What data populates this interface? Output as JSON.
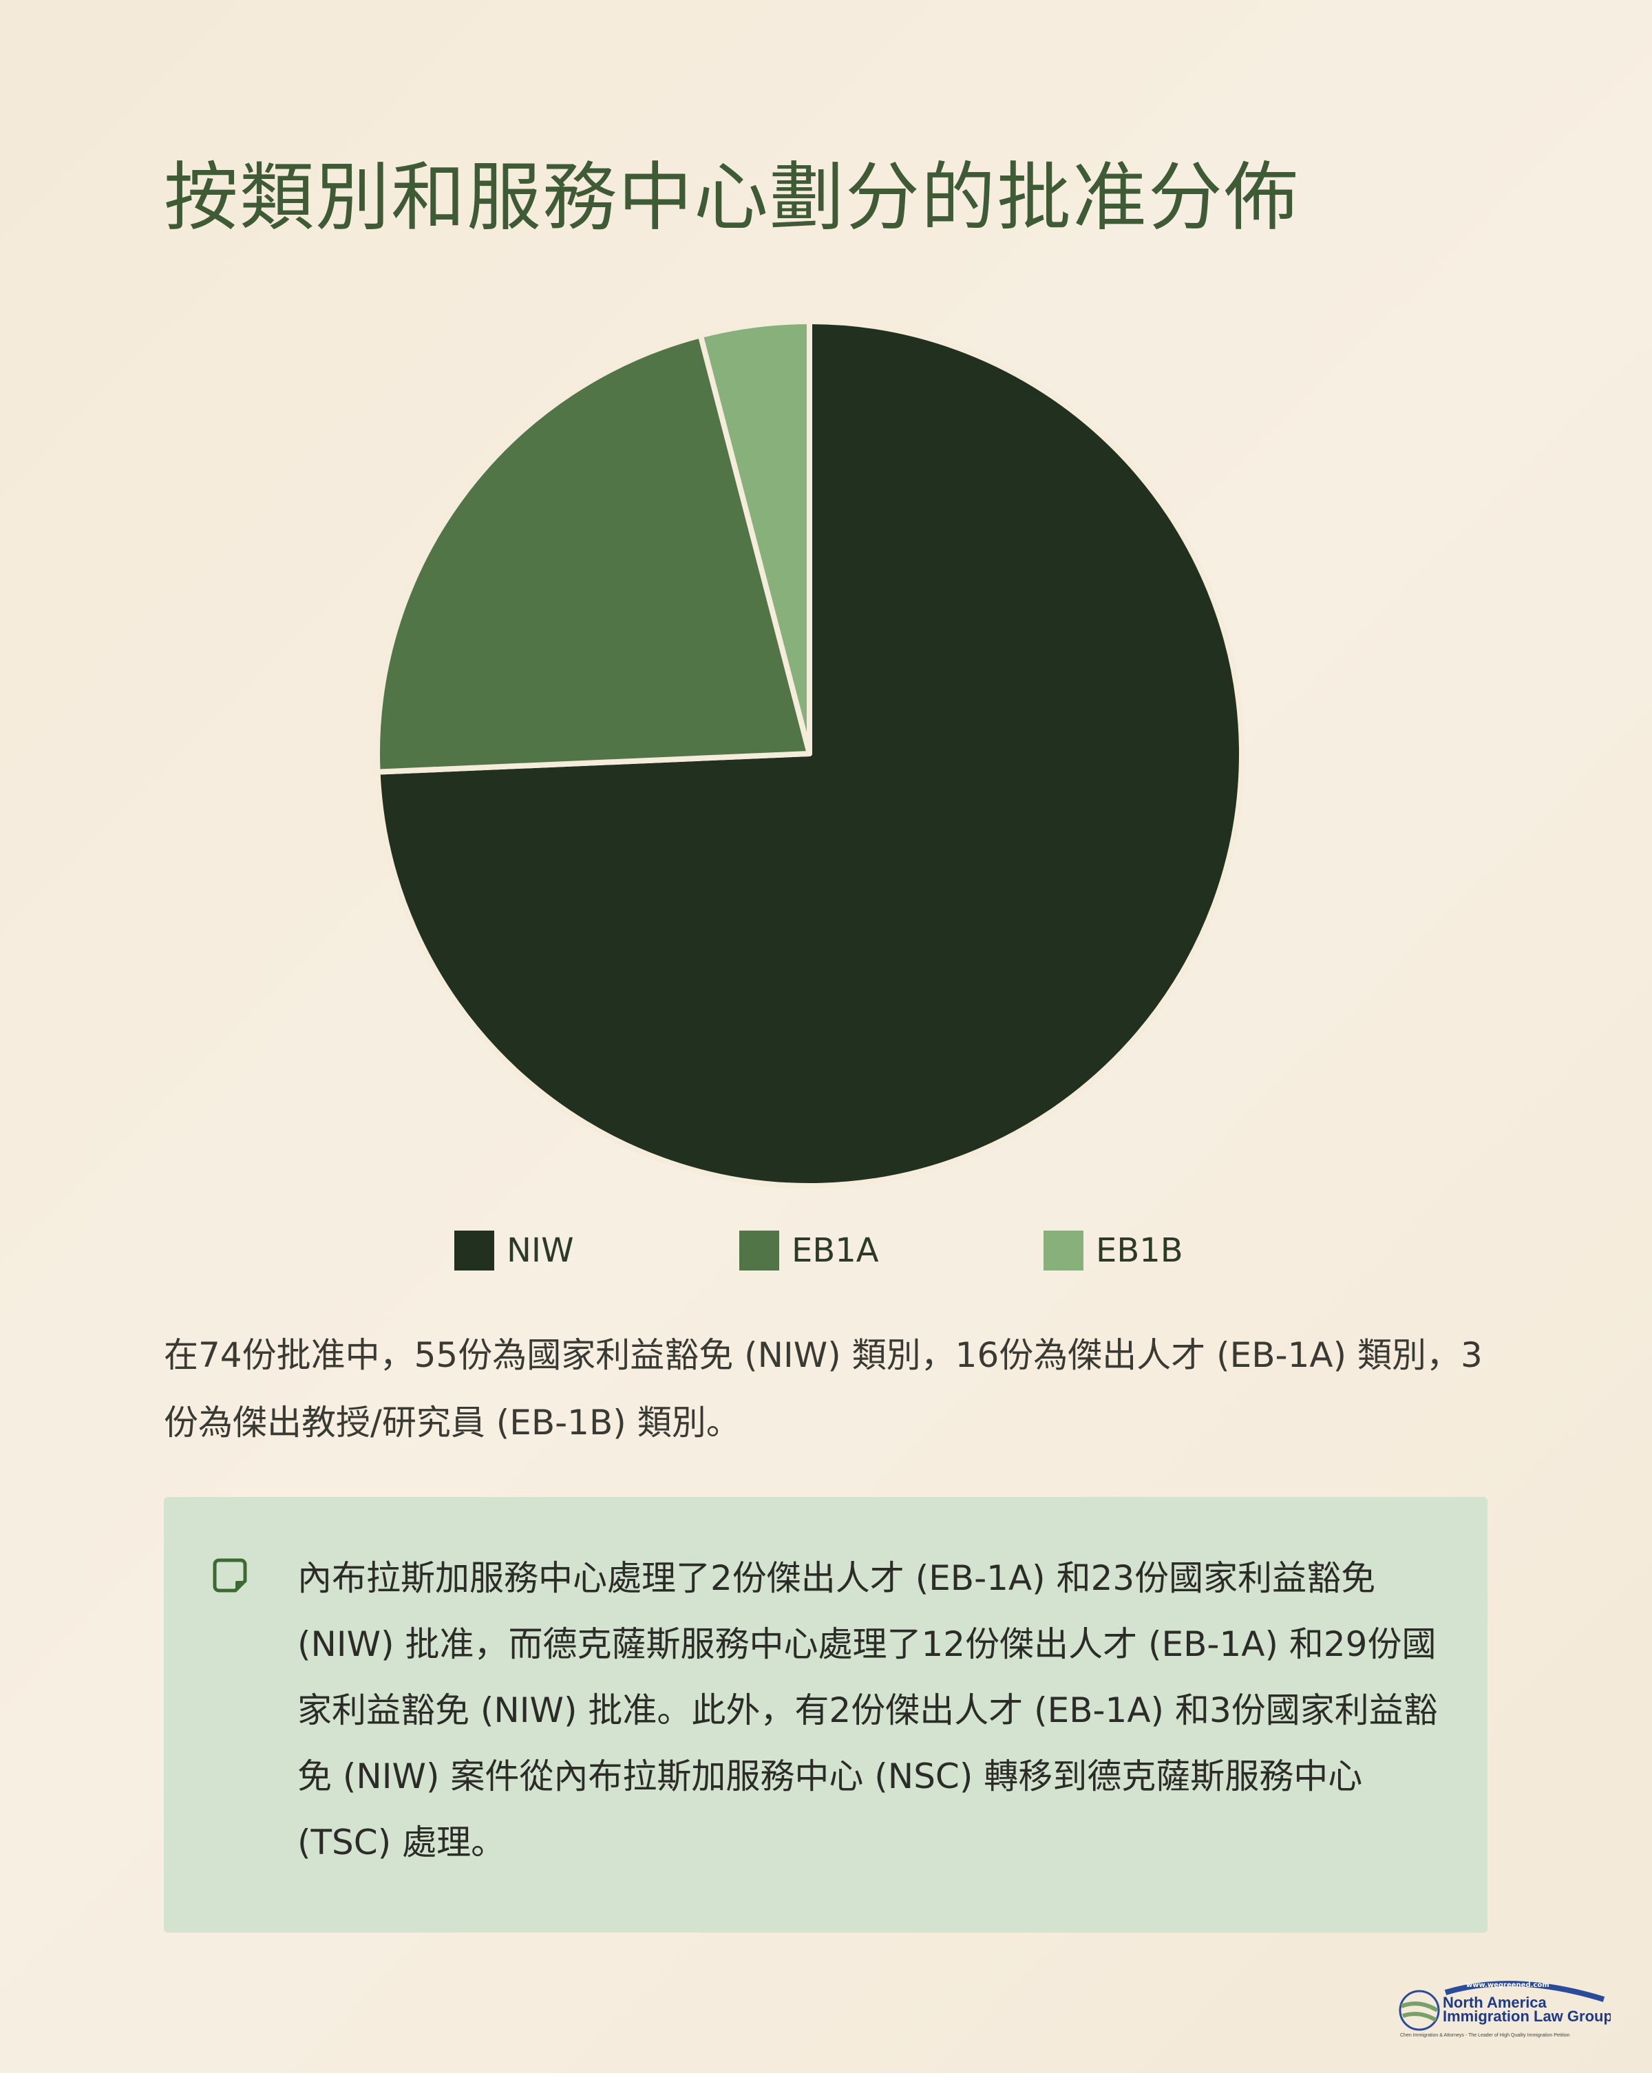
{
  "title": "按類別和服務中心劃分的批准分佈",
  "chart_data": {
    "type": "pie",
    "title": "按類別和服務中心劃分的批准分佈",
    "categories": [
      "NIW",
      "EB1A",
      "EB1B"
    ],
    "values": [
      55,
      16,
      3
    ],
    "colors": [
      "#22301f",
      "#527548",
      "#88b07a"
    ],
    "legend": "bottom",
    "start": "top, clockwise"
  },
  "summary": "在74份批准中，55份為國家利益豁免 (NIW) 類別，16份為傑出人才 (EB-1A) 類別，3份為傑出教授/研究員 (EB-1B) 類別。",
  "note": {
    "icon": "sticky-note-icon",
    "text": "內布拉斯加服務中心處理了2份傑出人才 (EB-1A) 和23份國家利益豁免 (NIW) 批准，而德克薩斯服務中心處理了12份傑出人才 (EB-1A) 和29份國家利益豁免 (NIW) 批准。此外，有2份傑出人才 (EB-1A) 和3份國家利益豁免 (NIW) 案件從內布拉斯加服務中心 (NSC) 轉移到德克薩斯服務中心 (TSC) 處理。"
  },
  "logo": {
    "url": "www.wegreened.com",
    "name_line1": "North America",
    "name_line2": "Immigration Law Group",
    "tagline": "Chen Immigration & Attorneys - The Leader of High Quality Immigration Petition"
  }
}
